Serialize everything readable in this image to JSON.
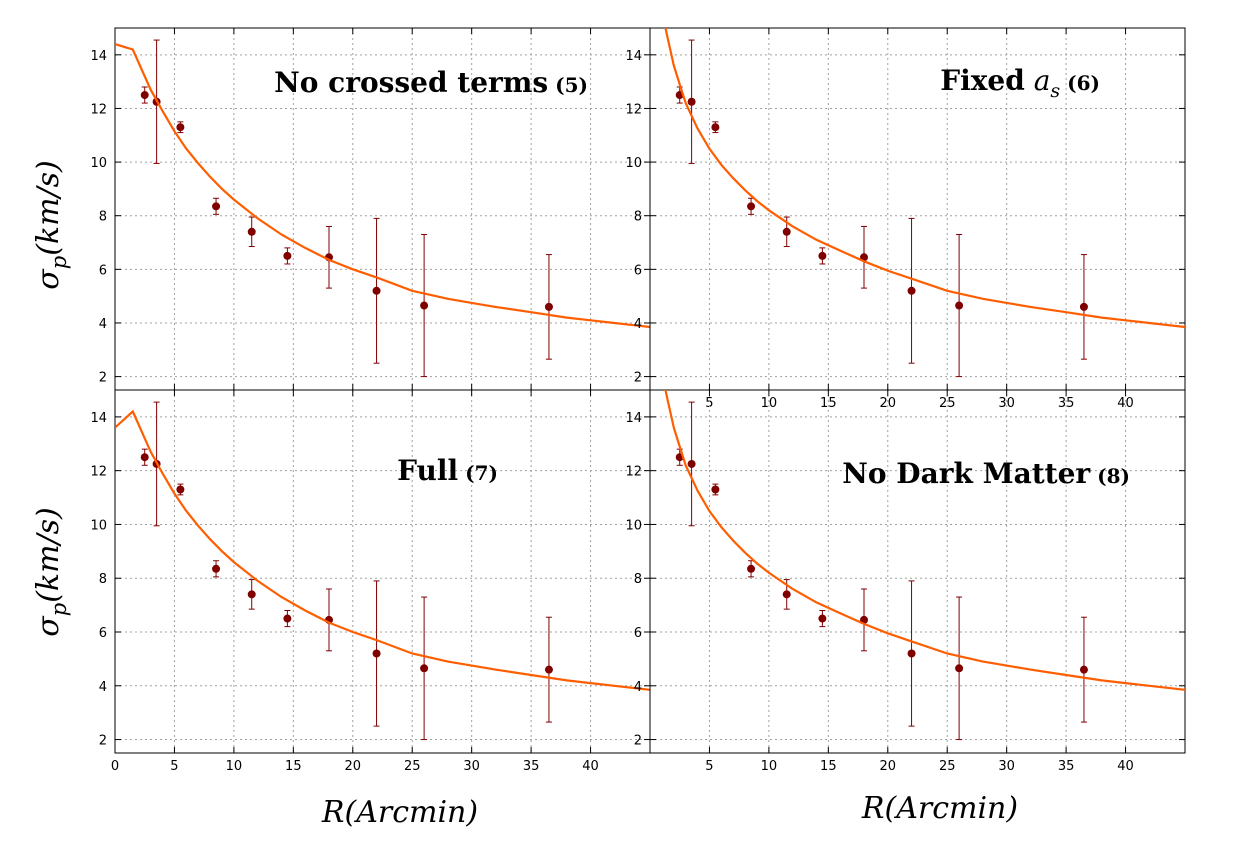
{
  "figure": {
    "ylabel": {
      "symbol": "σ",
      "subscript": "p",
      "unit": "(km/s)"
    },
    "xlabel": "R(Arcmin)"
  },
  "colors": {
    "fit_line": "#ff5e00",
    "points": "#800000",
    "grid": "#a0a0a0",
    "axes": "#000000"
  },
  "chart_data": [
    {
      "type": "scatter",
      "title": {
        "text": "No crossed terms",
        "math": "",
        "subscript": "",
        "eq": "(5)"
      },
      "xlabel": "",
      "ylabel": "σp(km/s)",
      "xlim": [
        0,
        45
      ],
      "ylim": [
        1.5,
        15
      ],
      "xticks": [],
      "yticks": [
        2,
        4,
        6,
        8,
        10,
        12,
        14
      ],
      "grid": true,
      "series": [
        {
          "kind": "points",
          "x": [
            2.5,
            3.5,
            5.5,
            8.5,
            11.5,
            14.5,
            18,
            22,
            26,
            36.5
          ],
          "y": [
            12.5,
            12.25,
            11.3,
            8.35,
            7.4,
            6.5,
            6.45,
            5.2,
            4.65,
            4.6
          ],
          "err": [
            0.3,
            2.3,
            0.2,
            0.3,
            0.55,
            0.3,
            1.15,
            2.7,
            2.65,
            1.95
          ]
        },
        {
          "kind": "line",
          "x": [
            0,
            1.5,
            3,
            4,
            5,
            6,
            7,
            8,
            9,
            10,
            12,
            14,
            16,
            18,
            20,
            22,
            25,
            28,
            30,
            32,
            35,
            38,
            40,
            42,
            45
          ],
          "y": [
            14.4,
            14.2,
            12.7,
            11.9,
            11.15,
            10.5,
            9.95,
            9.45,
            9.0,
            8.6,
            7.9,
            7.3,
            6.8,
            6.35,
            6.0,
            5.7,
            5.2,
            4.9,
            4.75,
            4.6,
            4.4,
            4.2,
            4.1,
            4.0,
            3.85
          ]
        }
      ]
    },
    {
      "type": "scatter",
      "title": {
        "text": "Fixed",
        "math": "a",
        "subscript": "s",
        "eq": "(6)"
      },
      "xlabel": "",
      "ylabel": "",
      "xlim": [
        0,
        45
      ],
      "ylim": [
        1.5,
        15
      ],
      "xticks": [
        5,
        10,
        15,
        20,
        25,
        30,
        35,
        40
      ],
      "yticks": [
        2,
        4,
        6,
        8,
        10,
        12,
        14
      ],
      "grid": true,
      "series": [
        {
          "kind": "points",
          "x": [
            2.5,
            3.5,
            5.5,
            8.5,
            11.5,
            14.5,
            18,
            22,
            26,
            36.5
          ],
          "y": [
            12.5,
            12.25,
            11.3,
            8.35,
            7.4,
            6.5,
            6.45,
            5.2,
            4.65,
            4.6
          ],
          "err": [
            0.3,
            2.3,
            0.2,
            0.3,
            0.55,
            0.3,
            1.15,
            2.7,
            2.65,
            1.95
          ]
        },
        {
          "kind": "line",
          "x": [
            1.2,
            1.5,
            2,
            2.5,
            3,
            4,
            5,
            6,
            7,
            8,
            9,
            10,
            12,
            14,
            16,
            18,
            20,
            22,
            25,
            28,
            30,
            32,
            35,
            38,
            40,
            42,
            45
          ],
          "y": [
            15.2,
            14.6,
            13.6,
            12.9,
            12.2,
            11.25,
            10.5,
            9.9,
            9.4,
            8.95,
            8.55,
            8.2,
            7.6,
            7.1,
            6.7,
            6.3,
            5.95,
            5.65,
            5.2,
            4.9,
            4.75,
            4.6,
            4.4,
            4.2,
            4.1,
            4.0,
            3.85
          ]
        }
      ]
    },
    {
      "type": "scatter",
      "title": {
        "text": "Full",
        "math": "",
        "subscript": "",
        "eq": "(7)"
      },
      "xlabel": "R(Arcmin)",
      "ylabel": "σp(km/s)",
      "xlim": [
        0,
        45
      ],
      "ylim": [
        1.5,
        15
      ],
      "xticks": [
        0,
        5,
        10,
        15,
        20,
        25,
        30,
        35,
        40
      ],
      "yticks": [
        2,
        4,
        6,
        8,
        10,
        12,
        14
      ],
      "grid": true,
      "series": [
        {
          "kind": "points",
          "x": [
            2.5,
            3.5,
            5.5,
            8.5,
            11.5,
            14.5,
            18,
            22,
            26,
            36.5
          ],
          "y": [
            12.5,
            12.25,
            11.3,
            8.35,
            7.4,
            6.5,
            6.45,
            5.2,
            4.65,
            4.6
          ],
          "err": [
            0.3,
            2.3,
            0.2,
            0.3,
            0.55,
            0.3,
            1.15,
            2.7,
            2.65,
            1.95
          ]
        },
        {
          "kind": "line",
          "x": [
            0,
            0.75,
            1.5,
            3,
            4,
            5,
            6,
            7,
            8,
            9,
            10,
            12,
            14,
            16,
            18,
            20,
            22,
            25,
            28,
            30,
            32,
            35,
            38,
            40,
            42,
            45
          ],
          "y": [
            13.6,
            13.9,
            14.2,
            12.7,
            11.9,
            11.15,
            10.5,
            9.95,
            9.45,
            9.0,
            8.6,
            7.9,
            7.3,
            6.8,
            6.35,
            6.0,
            5.7,
            5.2,
            4.9,
            4.75,
            4.6,
            4.4,
            4.2,
            4.1,
            4.0,
            3.85
          ]
        }
      ]
    },
    {
      "type": "scatter",
      "title": {
        "text": "No Dark Matter",
        "math": "",
        "subscript": "",
        "eq": "(8)"
      },
      "xlabel": "R(Arcmin)",
      "ylabel": "",
      "xlim": [
        0,
        45
      ],
      "ylim": [
        1.5,
        15
      ],
      "xticks": [
        5,
        10,
        15,
        20,
        25,
        30,
        35,
        40
      ],
      "yticks": [
        2,
        4,
        6,
        8,
        10,
        12,
        14
      ],
      "grid": true,
      "series": [
        {
          "kind": "points",
          "x": [
            2.5,
            3.5,
            5.5,
            8.5,
            11.5,
            14.5,
            18,
            22,
            26,
            36.5
          ],
          "y": [
            12.5,
            12.25,
            11.3,
            8.35,
            7.4,
            6.5,
            6.45,
            5.2,
            4.65,
            4.6
          ],
          "err": [
            0.3,
            2.3,
            0.2,
            0.3,
            0.55,
            0.3,
            1.15,
            2.7,
            2.65,
            1.95
          ]
        },
        {
          "kind": "line",
          "x": [
            1.2,
            1.5,
            2,
            2.5,
            3,
            4,
            5,
            6,
            7,
            8,
            9,
            10,
            12,
            14,
            16,
            18,
            20,
            22,
            25,
            28,
            30,
            32,
            35,
            38,
            40,
            42,
            45
          ],
          "y": [
            15.2,
            14.6,
            13.6,
            12.9,
            12.2,
            11.25,
            10.5,
            9.9,
            9.4,
            8.95,
            8.55,
            8.2,
            7.6,
            7.1,
            6.7,
            6.3,
            5.95,
            5.65,
            5.2,
            4.9,
            4.75,
            4.6,
            4.4,
            4.2,
            4.1,
            4.0,
            3.85
          ]
        }
      ]
    }
  ]
}
